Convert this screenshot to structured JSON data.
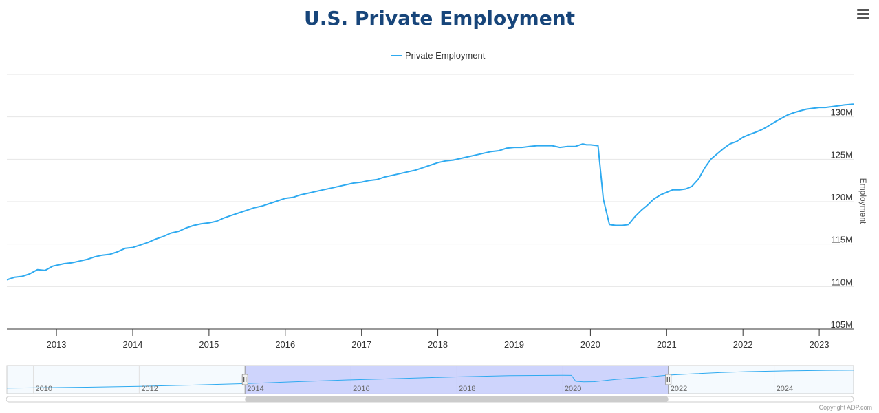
{
  "menu_icon": "hamburger-menu-icon",
  "credit": "Copyright ADP.com",
  "colors": {
    "series": "#2eaaf0",
    "title": "#17457a",
    "navigator_mask": "#c7cdfb",
    "navigator_handle": "#f2f2f2"
  },
  "chart_data": {
    "type": "line",
    "title": "U.S. Private Employment",
    "legend": [
      "Private Employment"
    ],
    "ylabel": "Employment",
    "xlabel": "",
    "ylim": [
      105,
      135
    ],
    "y_ticks": [
      "105M",
      "110M",
      "115M",
      "120M",
      "125M",
      "130M"
    ],
    "y_tick_values": [
      105,
      110,
      115,
      120,
      125,
      130
    ],
    "x_ticks": [
      "2013",
      "2014",
      "2015",
      "2016",
      "2017",
      "2018",
      "2019",
      "2020",
      "2021",
      "2022",
      "2023"
    ],
    "x_tick_values": [
      2013,
      2014,
      2015,
      2016,
      2017,
      2018,
      2019,
      2020,
      2021,
      2022,
      2023
    ],
    "xlim": [
      2012.35,
      2023.45
    ],
    "series": [
      {
        "name": "Private Employment",
        "unit": "millions",
        "x": [
          2012.35,
          2012.45,
          2012.55,
          2012.65,
          2012.75,
          2012.85,
          2012.95,
          2013.0,
          2013.1,
          2013.2,
          2013.3,
          2013.4,
          2013.5,
          2013.6,
          2013.7,
          2013.8,
          2013.9,
          2014.0,
          2014.1,
          2014.2,
          2014.3,
          2014.4,
          2014.5,
          2014.6,
          2014.7,
          2014.8,
          2014.9,
          2015.0,
          2015.1,
          2015.2,
          2015.3,
          2015.4,
          2015.5,
          2015.6,
          2015.7,
          2015.8,
          2015.9,
          2016.0,
          2016.1,
          2016.2,
          2016.3,
          2016.4,
          2016.5,
          2016.6,
          2016.7,
          2016.8,
          2016.9,
          2017.0,
          2017.1,
          2017.2,
          2017.3,
          2017.4,
          2017.5,
          2017.6,
          2017.7,
          2017.8,
          2017.9,
          2018.0,
          2018.1,
          2018.2,
          2018.3,
          2018.4,
          2018.5,
          2018.6,
          2018.7,
          2018.8,
          2018.9,
          2019.0,
          2019.1,
          2019.2,
          2019.3,
          2019.4,
          2019.5,
          2019.6,
          2019.7,
          2019.8,
          2019.9,
          2019.95,
          2020.0,
          2020.1,
          2020.17,
          2020.25,
          2020.33,
          2020.42,
          2020.5,
          2020.58,
          2020.67,
          2020.75,
          2020.83,
          2020.92,
          2021.0,
          2021.08,
          2021.17,
          2021.25,
          2021.33,
          2021.42,
          2021.5,
          2021.58,
          2021.67,
          2021.75,
          2021.83,
          2021.92,
          2022.0,
          2022.08,
          2022.17,
          2022.25,
          2022.33,
          2022.42,
          2022.5,
          2022.58,
          2022.67,
          2022.75,
          2022.83,
          2022.92,
          2023.0,
          2023.08,
          2023.17,
          2023.25,
          2023.33,
          2023.45
        ],
        "y": [
          110.8,
          111.1,
          111.2,
          111.5,
          112.0,
          111.9,
          112.4,
          112.5,
          112.7,
          112.8,
          113.0,
          113.2,
          113.5,
          113.7,
          113.8,
          114.1,
          114.5,
          114.6,
          114.9,
          115.2,
          115.6,
          115.9,
          116.3,
          116.5,
          116.9,
          117.2,
          117.4,
          117.5,
          117.7,
          118.1,
          118.4,
          118.7,
          119.0,
          119.3,
          119.5,
          119.8,
          120.1,
          120.4,
          120.5,
          120.8,
          121.0,
          121.2,
          121.4,
          121.6,
          121.8,
          122.0,
          122.2,
          122.3,
          122.5,
          122.6,
          122.9,
          123.1,
          123.3,
          123.5,
          123.7,
          124.0,
          124.3,
          124.6,
          124.8,
          124.9,
          125.1,
          125.3,
          125.5,
          125.7,
          125.9,
          126.0,
          126.3,
          126.4,
          126.4,
          126.5,
          126.6,
          126.6,
          126.6,
          126.4,
          126.5,
          126.5,
          126.8,
          126.7,
          126.7,
          126.6,
          120.3,
          117.3,
          117.2,
          117.2,
          117.3,
          118.2,
          119.0,
          119.6,
          120.3,
          120.8,
          121.1,
          121.4,
          121.4,
          121.5,
          121.8,
          122.7,
          124.0,
          125.0,
          125.7,
          126.3,
          126.8,
          127.1,
          127.6,
          127.9,
          128.2,
          128.5,
          128.9,
          129.4,
          129.8,
          130.2,
          130.5,
          130.7,
          130.9,
          131.0,
          131.1,
          131.1,
          131.2,
          131.3,
          131.4,
          131.5
        ]
      }
    ],
    "navigator": {
      "xlim": [
        2009.5,
        2025.5
      ],
      "labels": [
        "2010",
        "2012",
        "2014",
        "2016",
        "2018",
        "2020",
        "2022",
        "2024"
      ],
      "label_values": [
        2010,
        2012,
        2014,
        2016,
        2018,
        2020,
        2022,
        2024
      ],
      "selected_range": [
        2014.0,
        2022.0
      ],
      "x": [
        2009.5,
        2010.0,
        2011.0,
        2012.0,
        2013.0,
        2014.0,
        2015.0,
        2016.0,
        2017.0,
        2018.0,
        2019.0,
        2020.0,
        2020.17,
        2020.25,
        2020.4,
        2020.6,
        2021.0,
        2021.5,
        2022.0,
        2022.5,
        2023.0,
        2023.5,
        2024.0,
        2024.5,
        2025.0,
        2025.5
      ],
      "y": [
        108.3,
        108.6,
        109.5,
        110.8,
        112.5,
        114.6,
        117.5,
        120.1,
        122.3,
        124.5,
        126.2,
        126.7,
        126.6,
        118.0,
        117.3,
        117.5,
        120.8,
        123.5,
        127.0,
        129.0,
        130.7,
        132.0,
        132.8,
        133.4,
        133.9,
        134.1
      ]
    }
  }
}
